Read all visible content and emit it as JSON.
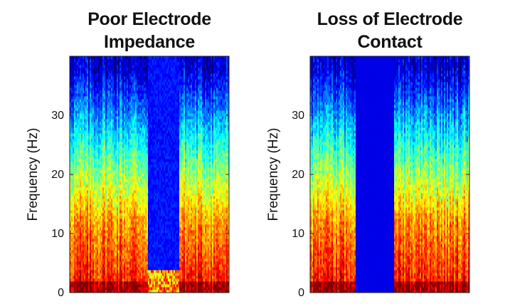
{
  "chart_data": [
    {
      "type": "heatmap",
      "title_lines": [
        "Poor Electrode",
        "Impedance"
      ],
      "ylabel": "Frequency (Hz)",
      "xlabel": "",
      "ylim": [
        0,
        40
      ],
      "yticks": [
        "0",
        "10",
        "20",
        "30"
      ],
      "colormap": "jet",
      "description_artifact": "narrow band of suppressed power across frequencies above ~4 Hz",
      "artifact": {
        "kind": "impedance",
        "start_frac": 0.49,
        "end_frac": 0.69,
        "cutoff_hz": 4
      }
    },
    {
      "type": "heatmap",
      "title_lines": [
        "Loss of Electrode",
        "Contact"
      ],
      "ylabel": "Frequency (Hz)",
      "xlabel": "",
      "ylim": [
        0,
        40
      ],
      "yticks": [
        "0",
        "10",
        "20",
        "30"
      ],
      "colormap": "jet",
      "artifact": {
        "kind": "loss",
        "start_frac": 0.29,
        "end_frac": 0.53,
        "cutoff_hz": 40
      }
    }
  ]
}
